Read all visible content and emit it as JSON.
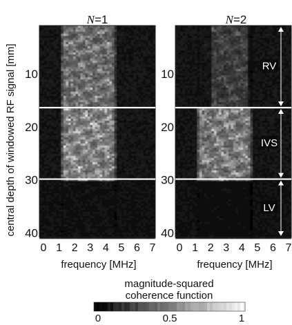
{
  "chart_data": {
    "type": "heatmap",
    "ylabel": "central depth of windowed RF signal [mm]",
    "xlabel": "frequency [MHz]",
    "colorbar": {
      "title_line1": "magnitude-squared",
      "title_line2": "coherence function",
      "ticks": [
        "0",
        "0.5",
        "1"
      ],
      "range": [
        0,
        1
      ]
    },
    "x_ticks": [
      "0",
      "1",
      "2",
      "3",
      "4",
      "5",
      "6",
      "7"
    ],
    "y_ticks": [
      "10",
      "20",
      "30",
      "40"
    ],
    "x_range_mhz": [
      0,
      7
    ],
    "y_range_mm": [
      1,
      41
    ],
    "boundaries_mm": [
      16.5,
      30.0
    ],
    "panels": [
      {
        "title": "N=1",
        "title_var": "N",
        "title_val": "=1",
        "high_band_mhz": [
          1.0,
          4.6
        ],
        "mean_coherence": {
          "RV": 0.55,
          "IVS": 0.65,
          "LV": 0.08
        }
      },
      {
        "title": "N=2",
        "title_var": "N",
        "title_val": "=2",
        "high_band_mhz": [
          1.0,
          4.6
        ],
        "mean_coherence": {
          "RV": 0.3,
          "IVS": 0.6,
          "LV": 0.06
        }
      }
    ],
    "regions": [
      {
        "label": "RV",
        "from_mm": 1,
        "to_mm": 16.5
      },
      {
        "label": "IVS",
        "from_mm": 16.5,
        "to_mm": 30
      },
      {
        "label": "LV",
        "from_mm": 30,
        "to_mm": 41
      }
    ],
    "grid": false
  }
}
